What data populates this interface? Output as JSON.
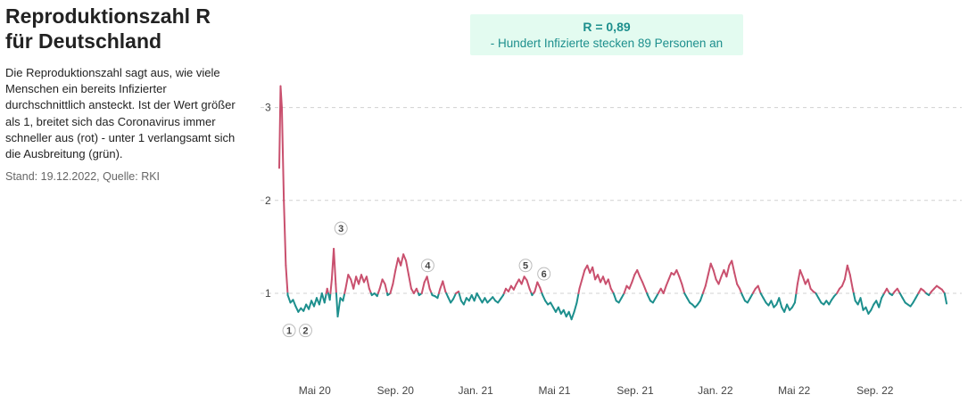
{
  "header": {
    "title_line1": "Reproduktionszahl R",
    "title_line2": "für Deutschland",
    "description": "Die Reproduktionszahl sagt aus, wie viele Menschen ein bereits Infizierter durchschnittlich ansteckt. Ist der Wert größer als 1, breitet sich das Coronavirus immer schneller aus (rot) - unter 1 verlangsamt sich die Ausbreitung (grün).",
    "source": "Stand: 19.12.2022, Quelle: RKI"
  },
  "current": {
    "value_label": "R = 0,89",
    "explanation": "- Hundert Infizierte stecken 89 Personen an"
  },
  "colors": {
    "above_one": "#c9506e",
    "below_one": "#1d8f8d",
    "grid": "#d0d0d0",
    "box_bg": "#e3fbf0"
  },
  "chart_data": {
    "type": "line",
    "title": "Reproduktionszahl R für Deutschland",
    "xlabel": "",
    "ylabel": "",
    "x_start": "2020-03-08",
    "x_end": "2022-12-19",
    "ylim": [
      0,
      3.3
    ],
    "grid": true,
    "threshold": 1,
    "y_ticks": [
      {
        "value": 1,
        "label": "1"
      },
      {
        "value": 2,
        "label": "2"
      },
      {
        "value": 3,
        "label": "3"
      }
    ],
    "x_ticks": [
      {
        "date": "2020-05-01",
        "label": "Mai 20"
      },
      {
        "date": "2020-09-01",
        "label": "Sep. 20"
      },
      {
        "date": "2021-01-01",
        "label": "Jan. 21"
      },
      {
        "date": "2021-05-01",
        "label": "Mai 21"
      },
      {
        "date": "2021-09-01",
        "label": "Sep. 21"
      },
      {
        "date": "2022-01-01",
        "label": "Jan. 22"
      },
      {
        "date": "2022-05-01",
        "label": "Mai 22"
      },
      {
        "date": "2022-09-01",
        "label": "Sep. 22"
      }
    ],
    "annotations": [
      {
        "label": "1",
        "date": "2020-03-23",
        "r": 0.6
      },
      {
        "label": "2",
        "date": "2020-04-17",
        "r": 0.6
      },
      {
        "label": "3",
        "date": "2020-06-10",
        "r": 1.7
      },
      {
        "label": "4",
        "date": "2020-10-20",
        "r": 1.3
      },
      {
        "label": "5",
        "date": "2021-03-18",
        "r": 1.3
      },
      {
        "label": "6",
        "date": "2021-04-15",
        "r": 1.21
      }
    ],
    "series": [
      {
        "name": "R",
        "points": [
          [
            "2020-03-08",
            2.35
          ],
          [
            "2020-03-10",
            3.23
          ],
          [
            "2020-03-12",
            3.0
          ],
          [
            "2020-03-15",
            2.0
          ],
          [
            "2020-03-18",
            1.3
          ],
          [
            "2020-03-21",
            0.98
          ],
          [
            "2020-03-25",
            0.9
          ],
          [
            "2020-03-29",
            0.93
          ],
          [
            "2020-04-02",
            0.86
          ],
          [
            "2020-04-06",
            0.8
          ],
          [
            "2020-04-10",
            0.84
          ],
          [
            "2020-04-14",
            0.81
          ],
          [
            "2020-04-18",
            0.88
          ],
          [
            "2020-04-22",
            0.83
          ],
          [
            "2020-04-26",
            0.92
          ],
          [
            "2020-04-30",
            0.86
          ],
          [
            "2020-05-04",
            0.95
          ],
          [
            "2020-05-08",
            0.88
          ],
          [
            "2020-05-12",
            1.0
          ],
          [
            "2020-05-16",
            0.9
          ],
          [
            "2020-05-20",
            1.05
          ],
          [
            "2020-05-24",
            0.93
          ],
          [
            "2020-05-27",
            1.15
          ],
          [
            "2020-05-30",
            1.48
          ],
          [
            "2020-06-02",
            1.1
          ],
          [
            "2020-06-05",
            0.75
          ],
          [
            "2020-06-09",
            0.95
          ],
          [
            "2020-06-13",
            0.92
          ],
          [
            "2020-06-17",
            1.05
          ],
          [
            "2020-06-21",
            1.2
          ],
          [
            "2020-06-25",
            1.15
          ],
          [
            "2020-06-29",
            1.05
          ],
          [
            "2020-07-03",
            1.18
          ],
          [
            "2020-07-07",
            1.1
          ],
          [
            "2020-07-11",
            1.2
          ],
          [
            "2020-07-15",
            1.12
          ],
          [
            "2020-07-19",
            1.18
          ],
          [
            "2020-07-23",
            1.05
          ],
          [
            "2020-07-27",
            0.98
          ],
          [
            "2020-07-31",
            1.0
          ],
          [
            "2020-08-04",
            0.97
          ],
          [
            "2020-08-08",
            1.05
          ],
          [
            "2020-08-12",
            1.15
          ],
          [
            "2020-08-16",
            1.1
          ],
          [
            "2020-08-20",
            0.98
          ],
          [
            "2020-08-24",
            1.0
          ],
          [
            "2020-08-28",
            1.1
          ],
          [
            "2020-09-01",
            1.25
          ],
          [
            "2020-09-05",
            1.38
          ],
          [
            "2020-09-09",
            1.3
          ],
          [
            "2020-09-13",
            1.42
          ],
          [
            "2020-09-17",
            1.35
          ],
          [
            "2020-09-21",
            1.2
          ],
          [
            "2020-09-25",
            1.05
          ],
          [
            "2020-09-29",
            1.0
          ],
          [
            "2020-10-03",
            1.05
          ],
          [
            "2020-10-07",
            0.98
          ],
          [
            "2020-10-11",
            1.0
          ],
          [
            "2020-10-15",
            1.12
          ],
          [
            "2020-10-19",
            1.18
          ],
          [
            "2020-10-23",
            1.05
          ],
          [
            "2020-10-27",
            0.98
          ],
          [
            "2020-10-31",
            0.97
          ],
          [
            "2020-11-04",
            0.95
          ],
          [
            "2020-11-08",
            1.05
          ],
          [
            "2020-11-12",
            1.13
          ],
          [
            "2020-11-16",
            1.02
          ],
          [
            "2020-11-20",
            0.96
          ],
          [
            "2020-11-24",
            0.9
          ],
          [
            "2020-11-28",
            0.94
          ],
          [
            "2020-12-02",
            1.0
          ],
          [
            "2020-12-06",
            1.02
          ],
          [
            "2020-12-10",
            0.92
          ],
          [
            "2020-12-14",
            0.88
          ],
          [
            "2020-12-18",
            0.95
          ],
          [
            "2020-12-22",
            0.92
          ],
          [
            "2020-12-26",
            0.98
          ],
          [
            "2020-12-30",
            0.92
          ],
          [
            "2021-01-03",
            1.0
          ],
          [
            "2021-01-07",
            0.95
          ],
          [
            "2021-01-11",
            0.9
          ],
          [
            "2021-01-15",
            0.95
          ],
          [
            "2021-01-19",
            0.9
          ],
          [
            "2021-01-23",
            0.93
          ],
          [
            "2021-01-27",
            0.96
          ],
          [
            "2021-01-31",
            0.92
          ],
          [
            "2021-02-04",
            0.9
          ],
          [
            "2021-02-08",
            0.94
          ],
          [
            "2021-02-12",
            0.98
          ],
          [
            "2021-02-16",
            1.05
          ],
          [
            "2021-02-20",
            1.02
          ],
          [
            "2021-02-24",
            1.08
          ],
          [
            "2021-02-28",
            1.04
          ],
          [
            "2021-03-04",
            1.1
          ],
          [
            "2021-03-08",
            1.15
          ],
          [
            "2021-03-12",
            1.1
          ],
          [
            "2021-03-16",
            1.18
          ],
          [
            "2021-03-20",
            1.14
          ],
          [
            "2021-03-24",
            1.05
          ],
          [
            "2021-03-28",
            0.98
          ],
          [
            "2021-04-01",
            1.02
          ],
          [
            "2021-04-05",
            1.12
          ],
          [
            "2021-04-09",
            1.06
          ],
          [
            "2021-04-13",
            0.98
          ],
          [
            "2021-04-17",
            0.92
          ],
          [
            "2021-04-21",
            0.88
          ],
          [
            "2021-04-25",
            0.9
          ],
          [
            "2021-04-29",
            0.85
          ],
          [
            "2021-05-03",
            0.8
          ],
          [
            "2021-05-07",
            0.85
          ],
          [
            "2021-05-11",
            0.78
          ],
          [
            "2021-05-15",
            0.82
          ],
          [
            "2021-05-19",
            0.75
          ],
          [
            "2021-05-23",
            0.8
          ],
          [
            "2021-05-27",
            0.72
          ],
          [
            "2021-05-31",
            0.8
          ],
          [
            "2021-06-04",
            0.9
          ],
          [
            "2021-06-08",
            1.05
          ],
          [
            "2021-06-12",
            1.15
          ],
          [
            "2021-06-16",
            1.25
          ],
          [
            "2021-06-20",
            1.3
          ],
          [
            "2021-06-24",
            1.22
          ],
          [
            "2021-06-28",
            1.28
          ],
          [
            "2021-07-02",
            1.15
          ],
          [
            "2021-07-06",
            1.2
          ],
          [
            "2021-07-10",
            1.12
          ],
          [
            "2021-07-14",
            1.18
          ],
          [
            "2021-07-18",
            1.1
          ],
          [
            "2021-07-22",
            1.15
          ],
          [
            "2021-07-26",
            1.05
          ],
          [
            "2021-07-30",
            1.0
          ],
          [
            "2021-08-03",
            0.92
          ],
          [
            "2021-08-07",
            0.9
          ],
          [
            "2021-08-11",
            0.95
          ],
          [
            "2021-08-15",
            1.0
          ],
          [
            "2021-08-19",
            1.08
          ],
          [
            "2021-08-23",
            1.05
          ],
          [
            "2021-08-27",
            1.12
          ],
          [
            "2021-08-31",
            1.2
          ],
          [
            "2021-09-04",
            1.25
          ],
          [
            "2021-09-08",
            1.18
          ],
          [
            "2021-09-12",
            1.12
          ],
          [
            "2021-09-16",
            1.05
          ],
          [
            "2021-09-20",
            0.98
          ],
          [
            "2021-09-24",
            0.92
          ],
          [
            "2021-09-28",
            0.9
          ],
          [
            "2021-10-02",
            0.95
          ],
          [
            "2021-10-06",
            1.0
          ],
          [
            "2021-10-10",
            1.05
          ],
          [
            "2021-10-14",
            1.0
          ],
          [
            "2021-10-18",
            1.08
          ],
          [
            "2021-10-22",
            1.15
          ],
          [
            "2021-10-26",
            1.22
          ],
          [
            "2021-10-30",
            1.2
          ],
          [
            "2021-11-03",
            1.25
          ],
          [
            "2021-11-07",
            1.18
          ],
          [
            "2021-11-11",
            1.1
          ],
          [
            "2021-11-15",
            1.0
          ],
          [
            "2021-11-19",
            0.95
          ],
          [
            "2021-11-23",
            0.9
          ],
          [
            "2021-11-27",
            0.88
          ],
          [
            "2021-12-01",
            0.85
          ],
          [
            "2021-12-05",
            0.88
          ],
          [
            "2021-12-09",
            0.92
          ],
          [
            "2021-12-13",
            1.0
          ],
          [
            "2021-12-17",
            1.08
          ],
          [
            "2021-12-21",
            1.2
          ],
          [
            "2021-12-25",
            1.32
          ],
          [
            "2021-12-29",
            1.25
          ],
          [
            "2022-01-02",
            1.15
          ],
          [
            "2022-01-06",
            1.1
          ],
          [
            "2022-01-10",
            1.18
          ],
          [
            "2022-01-14",
            1.25
          ],
          [
            "2022-01-18",
            1.18
          ],
          [
            "2022-01-22",
            1.3
          ],
          [
            "2022-01-26",
            1.35
          ],
          [
            "2022-01-30",
            1.22
          ],
          [
            "2022-02-03",
            1.1
          ],
          [
            "2022-02-07",
            1.05
          ],
          [
            "2022-02-11",
            0.98
          ],
          [
            "2022-02-15",
            0.92
          ],
          [
            "2022-02-19",
            0.9
          ],
          [
            "2022-02-23",
            0.95
          ],
          [
            "2022-02-27",
            1.0
          ],
          [
            "2022-03-03",
            1.05
          ],
          [
            "2022-03-07",
            1.08
          ],
          [
            "2022-03-11",
            1.0
          ],
          [
            "2022-03-15",
            0.95
          ],
          [
            "2022-03-19",
            0.9
          ],
          [
            "2022-03-23",
            0.87
          ],
          [
            "2022-03-27",
            0.92
          ],
          [
            "2022-03-31",
            0.85
          ],
          [
            "2022-04-04",
            0.88
          ],
          [
            "2022-04-08",
            0.95
          ],
          [
            "2022-04-12",
            0.85
          ],
          [
            "2022-04-16",
            0.8
          ],
          [
            "2022-04-20",
            0.88
          ],
          [
            "2022-04-24",
            0.82
          ],
          [
            "2022-04-28",
            0.85
          ],
          [
            "2022-05-02",
            0.9
          ],
          [
            "2022-05-06",
            1.1
          ],
          [
            "2022-05-10",
            1.25
          ],
          [
            "2022-05-14",
            1.18
          ],
          [
            "2022-05-18",
            1.1
          ],
          [
            "2022-05-22",
            1.15
          ],
          [
            "2022-05-26",
            1.05
          ],
          [
            "2022-05-30",
            1.02
          ],
          [
            "2022-06-03",
            1.0
          ],
          [
            "2022-06-07",
            0.95
          ],
          [
            "2022-06-11",
            0.9
          ],
          [
            "2022-06-15",
            0.88
          ],
          [
            "2022-06-19",
            0.92
          ],
          [
            "2022-06-23",
            0.88
          ],
          [
            "2022-06-27",
            0.93
          ],
          [
            "2022-07-01",
            0.97
          ],
          [
            "2022-07-05",
            1.0
          ],
          [
            "2022-07-09",
            1.05
          ],
          [
            "2022-07-13",
            1.08
          ],
          [
            "2022-07-17",
            1.15
          ],
          [
            "2022-07-21",
            1.3
          ],
          [
            "2022-07-25",
            1.2
          ],
          [
            "2022-07-29",
            1.05
          ],
          [
            "2022-08-02",
            0.92
          ],
          [
            "2022-08-06",
            0.88
          ],
          [
            "2022-08-10",
            0.95
          ],
          [
            "2022-08-14",
            0.82
          ],
          [
            "2022-08-18",
            0.85
          ],
          [
            "2022-08-22",
            0.78
          ],
          [
            "2022-08-26",
            0.82
          ],
          [
            "2022-08-30",
            0.88
          ],
          [
            "2022-09-03",
            0.92
          ],
          [
            "2022-09-07",
            0.85
          ],
          [
            "2022-09-11",
            0.95
          ],
          [
            "2022-09-15",
            1.0
          ],
          [
            "2022-09-19",
            1.05
          ],
          [
            "2022-09-23",
            1.0
          ],
          [
            "2022-09-27",
            0.98
          ],
          [
            "2022-10-01",
            1.02
          ],
          [
            "2022-10-05",
            1.05
          ],
          [
            "2022-10-09",
            1.0
          ],
          [
            "2022-10-13",
            0.95
          ],
          [
            "2022-10-17",
            0.9
          ],
          [
            "2022-10-21",
            0.88
          ],
          [
            "2022-10-25",
            0.86
          ],
          [
            "2022-10-29",
            0.9
          ],
          [
            "2022-11-02",
            0.95
          ],
          [
            "2022-11-06",
            1.0
          ],
          [
            "2022-11-10",
            1.05
          ],
          [
            "2022-11-14",
            1.03
          ],
          [
            "2022-11-18",
            1.0
          ],
          [
            "2022-11-22",
            0.98
          ],
          [
            "2022-11-26",
            1.02
          ],
          [
            "2022-11-30",
            1.05
          ],
          [
            "2022-12-04",
            1.08
          ],
          [
            "2022-12-08",
            1.06
          ],
          [
            "2022-12-12",
            1.04
          ],
          [
            "2022-12-16",
            1.0
          ],
          [
            "2022-12-19",
            0.89
          ]
        ]
      }
    ]
  }
}
